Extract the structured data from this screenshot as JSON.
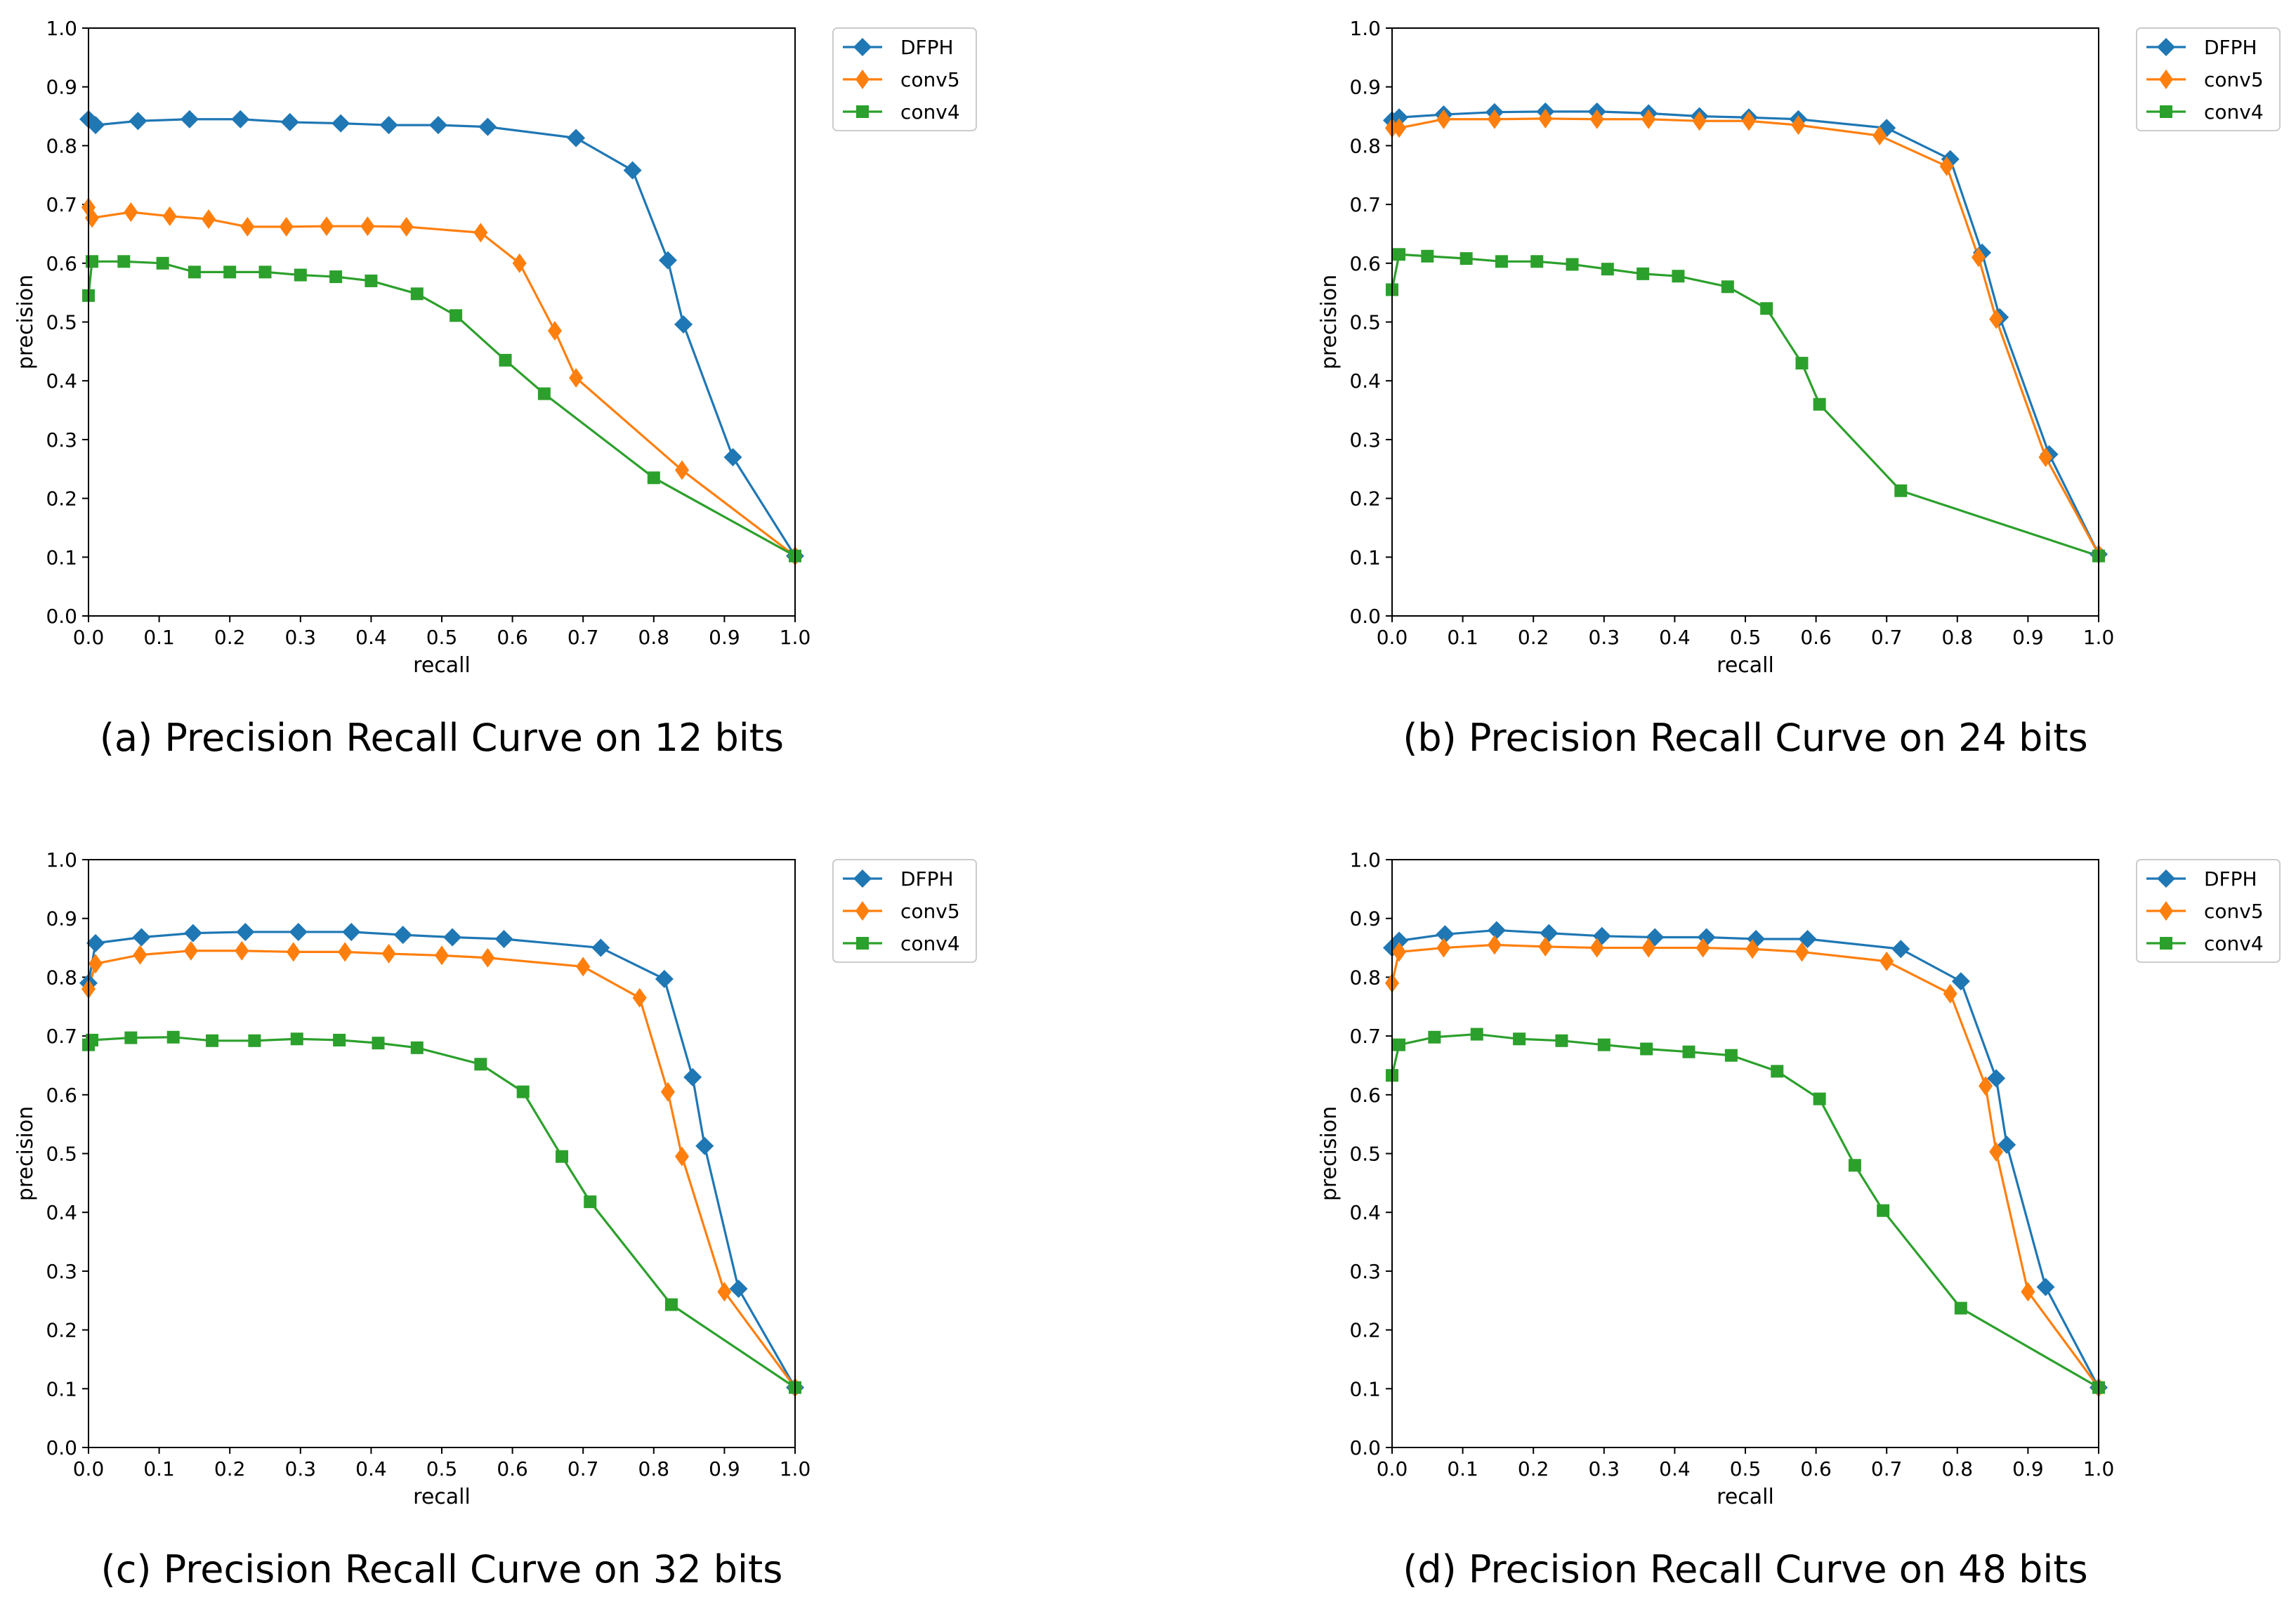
{
  "chart_data": [
    {
      "type": "line",
      "caption": "(a) Precision Recall Curve on 12 bits",
      "xlabel": "recall",
      "ylabel": "precision",
      "xlim": [
        0,
        1
      ],
      "ylim": [
        0,
        1
      ],
      "xticks": [
        "0.0",
        "0.1",
        "0.2",
        "0.3",
        "0.4",
        "0.5",
        "0.6",
        "0.7",
        "0.8",
        "0.9",
        "1.0"
      ],
      "yticks": [
        "0.0",
        "0.1",
        "0.2",
        "0.3",
        "0.4",
        "0.5",
        "0.6",
        "0.7",
        "0.8",
        "0.9",
        "1.0"
      ],
      "legend_position": "outside-top-right",
      "series": [
        {
          "name": "DFPH",
          "color": "#1f77b4",
          "marker": "diamond",
          "x": [
            0.0,
            0.01,
            0.07,
            0.143,
            0.215,
            0.285,
            0.357,
            0.425,
            0.495,
            0.565,
            0.69,
            0.77,
            0.82,
            0.842,
            0.912,
            1.0
          ],
          "y": [
            0.845,
            0.835,
            0.842,
            0.845,
            0.845,
            0.84,
            0.838,
            0.835,
            0.835,
            0.832,
            0.813,
            0.758,
            0.605,
            0.496,
            0.27,
            0.102
          ]
        },
        {
          "name": "conv5",
          "color": "#ff7f0e",
          "marker": "thin_diamond",
          "x": [
            0.0,
            0.005,
            0.06,
            0.115,
            0.17,
            0.225,
            0.28,
            0.337,
            0.395,
            0.45,
            0.555,
            0.61,
            0.66,
            0.69,
            0.84,
            1.0
          ],
          "y": [
            0.695,
            0.677,
            0.687,
            0.68,
            0.675,
            0.662,
            0.662,
            0.663,
            0.663,
            0.662,
            0.652,
            0.6,
            0.485,
            0.405,
            0.248,
            0.102
          ]
        },
        {
          "name": "conv4",
          "color": "#2ca02c",
          "marker": "square",
          "x": [
            0.0,
            0.005,
            0.05,
            0.105,
            0.15,
            0.2,
            0.25,
            0.3,
            0.35,
            0.4,
            0.465,
            0.52,
            0.59,
            0.645,
            0.8,
            1.0
          ],
          "y": [
            0.545,
            0.603,
            0.603,
            0.6,
            0.585,
            0.585,
            0.585,
            0.58,
            0.577,
            0.57,
            0.548,
            0.511,
            0.435,
            0.378,
            0.235,
            0.102
          ]
        }
      ]
    },
    {
      "type": "line",
      "caption": "(b) Precision Recall Curve on 24 bits",
      "xlabel": "recall",
      "ylabel": "precision",
      "xlim": [
        0,
        1
      ],
      "ylim": [
        0,
        1
      ],
      "xticks": [
        "0.0",
        "0.1",
        "0.2",
        "0.3",
        "0.4",
        "0.5",
        "0.6",
        "0.7",
        "0.8",
        "0.9",
        "1.0"
      ],
      "yticks": [
        "0.0",
        "0.1",
        "0.2",
        "0.3",
        "0.4",
        "0.5",
        "0.6",
        "0.7",
        "0.8",
        "0.9",
        "1.0"
      ],
      "legend_position": "outside-top-right",
      "series": [
        {
          "name": "DFPH",
          "color": "#1f77b4",
          "marker": "diamond",
          "x": [
            0.0,
            0.01,
            0.073,
            0.145,
            0.217,
            0.29,
            0.363,
            0.435,
            0.505,
            0.575,
            0.7,
            0.79,
            0.835,
            0.86,
            0.93,
            1.0
          ],
          "y": [
            0.843,
            0.848,
            0.853,
            0.857,
            0.858,
            0.858,
            0.855,
            0.85,
            0.848,
            0.845,
            0.83,
            0.777,
            0.618,
            0.508,
            0.275,
            0.105
          ]
        },
        {
          "name": "conv5",
          "color": "#ff7f0e",
          "marker": "thin_diamond",
          "x": [
            0.0,
            0.01,
            0.073,
            0.145,
            0.217,
            0.29,
            0.363,
            0.435,
            0.505,
            0.575,
            0.69,
            0.785,
            0.83,
            0.855,
            0.925,
            1.0
          ],
          "y": [
            0.83,
            0.83,
            0.845,
            0.845,
            0.846,
            0.845,
            0.845,
            0.842,
            0.842,
            0.835,
            0.817,
            0.765,
            0.61,
            0.505,
            0.27,
            0.105
          ]
        },
        {
          "name": "conv4",
          "color": "#2ca02c",
          "marker": "square",
          "x": [
            0.0,
            0.01,
            0.05,
            0.105,
            0.155,
            0.205,
            0.255,
            0.305,
            0.355,
            0.405,
            0.475,
            0.53,
            0.58,
            0.605,
            0.72,
            1.0
          ],
          "y": [
            0.555,
            0.615,
            0.612,
            0.608,
            0.603,
            0.603,
            0.598,
            0.59,
            0.582,
            0.578,
            0.56,
            0.523,
            0.43,
            0.36,
            0.213,
            0.102
          ]
        }
      ]
    },
    {
      "type": "line",
      "caption": "(c) Precision Recall Curve on 32 bits",
      "xlabel": "recall",
      "ylabel": "precision",
      "xlim": [
        0,
        1
      ],
      "ylim": [
        0,
        1
      ],
      "xticks": [
        "0.0",
        "0.1",
        "0.2",
        "0.3",
        "0.4",
        "0.5",
        "0.6",
        "0.7",
        "0.8",
        "0.9",
        "1.0"
      ],
      "yticks": [
        "0.0",
        "0.1",
        "0.2",
        "0.3",
        "0.4",
        "0.5",
        "0.6",
        "0.7",
        "0.8",
        "0.9",
        "1.0"
      ],
      "legend_position": "outside-top-right",
      "series": [
        {
          "name": "DFPH",
          "color": "#1f77b4",
          "marker": "diamond",
          "x": [
            0.0,
            0.01,
            0.075,
            0.148,
            0.222,
            0.297,
            0.372,
            0.445,
            0.515,
            0.588,
            0.725,
            0.815,
            0.855,
            0.872,
            0.92,
            1.0
          ],
          "y": [
            0.79,
            0.858,
            0.868,
            0.875,
            0.877,
            0.877,
            0.877,
            0.872,
            0.868,
            0.865,
            0.85,
            0.797,
            0.63,
            0.513,
            0.27,
            0.102
          ]
        },
        {
          "name": "conv5",
          "color": "#ff7f0e",
          "marker": "thin_diamond",
          "x": [
            0.0,
            0.01,
            0.073,
            0.145,
            0.217,
            0.29,
            0.363,
            0.425,
            0.5,
            0.565,
            0.7,
            0.78,
            0.82,
            0.84,
            0.9,
            1.0
          ],
          "y": [
            0.78,
            0.823,
            0.838,
            0.845,
            0.845,
            0.843,
            0.843,
            0.84,
            0.837,
            0.833,
            0.818,
            0.765,
            0.605,
            0.495,
            0.265,
            0.102
          ]
        },
        {
          "name": "conv4",
          "color": "#2ca02c",
          "marker": "square",
          "x": [
            0.0,
            0.005,
            0.06,
            0.12,
            0.175,
            0.235,
            0.295,
            0.355,
            0.41,
            0.465,
            0.555,
            0.615,
            0.67,
            0.71,
            0.825,
            1.0
          ],
          "y": [
            0.685,
            0.693,
            0.697,
            0.698,
            0.692,
            0.692,
            0.695,
            0.693,
            0.688,
            0.68,
            0.652,
            0.605,
            0.495,
            0.418,
            0.243,
            0.102
          ]
        }
      ]
    },
    {
      "type": "line",
      "caption": "(d) Precision Recall Curve on 48 bits",
      "xlabel": "recall",
      "ylabel": "precision",
      "xlim": [
        0,
        1
      ],
      "ylim": [
        0,
        1
      ],
      "xticks": [
        "0.0",
        "0.1",
        "0.2",
        "0.3",
        "0.4",
        "0.5",
        "0.6",
        "0.7",
        "0.8",
        "0.9",
        "1.0"
      ],
      "yticks": [
        "0.0",
        "0.1",
        "0.2",
        "0.3",
        "0.4",
        "0.5",
        "0.6",
        "0.7",
        "0.8",
        "0.9",
        "1.0"
      ],
      "legend_position": "outside-top-right",
      "series": [
        {
          "name": "DFPH",
          "color": "#1f77b4",
          "marker": "diamond",
          "x": [
            0.0,
            0.01,
            0.075,
            0.148,
            0.222,
            0.297,
            0.372,
            0.445,
            0.515,
            0.588,
            0.72,
            0.805,
            0.855,
            0.87,
            0.925,
            1.0
          ],
          "y": [
            0.85,
            0.862,
            0.873,
            0.88,
            0.875,
            0.87,
            0.868,
            0.868,
            0.865,
            0.865,
            0.848,
            0.793,
            0.628,
            0.515,
            0.273,
            0.102
          ]
        },
        {
          "name": "conv5",
          "color": "#ff7f0e",
          "marker": "thin_diamond",
          "x": [
            0.0,
            0.01,
            0.073,
            0.145,
            0.217,
            0.29,
            0.363,
            0.44,
            0.51,
            0.58,
            0.7,
            0.79,
            0.84,
            0.855,
            0.9,
            1.0
          ],
          "y": [
            0.79,
            0.843,
            0.85,
            0.855,
            0.852,
            0.85,
            0.85,
            0.85,
            0.848,
            0.843,
            0.827,
            0.772,
            0.615,
            0.503,
            0.265,
            0.102
          ]
        },
        {
          "name": "conv4",
          "color": "#2ca02c",
          "marker": "square",
          "x": [
            0.0,
            0.01,
            0.06,
            0.12,
            0.18,
            0.24,
            0.3,
            0.36,
            0.42,
            0.48,
            0.545,
            0.605,
            0.655,
            0.695,
            0.805,
            1.0
          ],
          "y": [
            0.633,
            0.685,
            0.698,
            0.703,
            0.695,
            0.692,
            0.685,
            0.678,
            0.673,
            0.667,
            0.64,
            0.593,
            0.48,
            0.403,
            0.237,
            0.102
          ]
        }
      ]
    }
  ]
}
